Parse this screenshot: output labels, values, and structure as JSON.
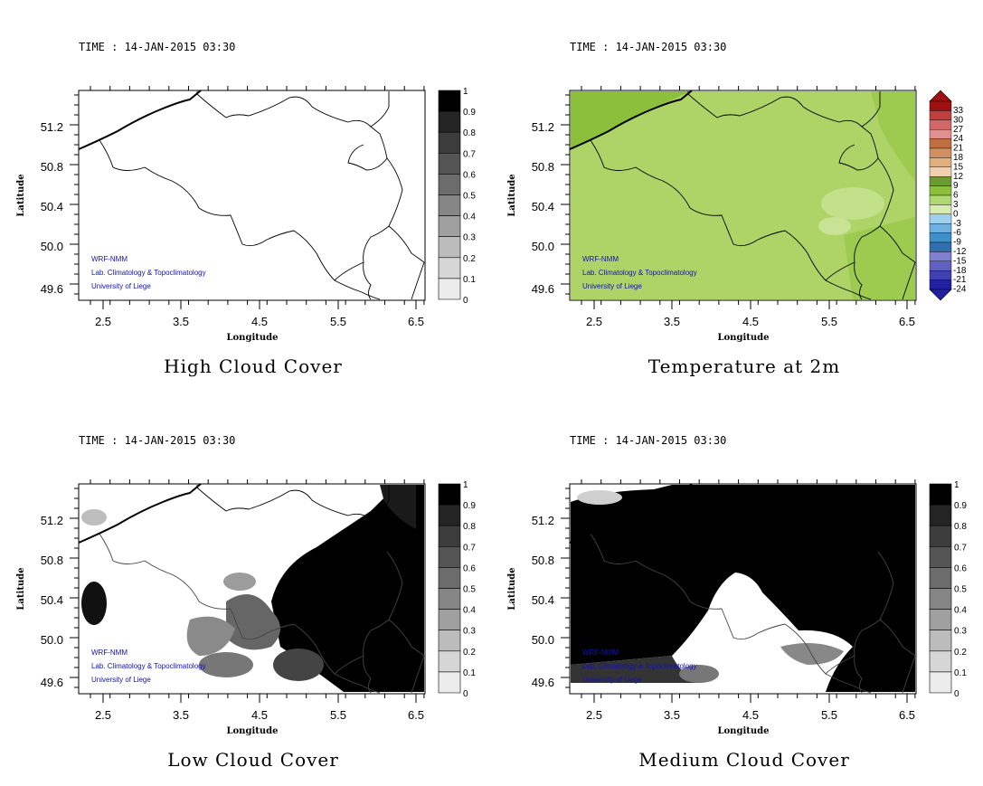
{
  "panels": [
    {
      "id": "high",
      "time": "TIME : 14-JAN-2015 03:30",
      "title": "High Cloud Cover",
      "xlabel": "Longitude",
      "ylabel": "Latitude",
      "x_ticks": [
        "2.5",
        "3.5",
        "4.5",
        "5.5",
        "6.5"
      ],
      "y_ticks": [
        "51.2",
        "50.8",
        "50.4",
        "50.0",
        "49.6"
      ],
      "colorbar_labels": [
        "1",
        "0.9",
        "0.8",
        "0.7",
        "0.6",
        "0.5",
        "0.4",
        "0.3",
        "0.2",
        "0.1",
        "0"
      ],
      "credits": [
        "WRF-NMM",
        "Lab. Climatology & Topoclimatology",
        "University of Liege"
      ]
    },
    {
      "id": "temp",
      "time": "TIME : 14-JAN-2015 03:30",
      "title": "Temperature at 2m",
      "xlabel": "Longitude",
      "ylabel": "Latitude",
      "x_ticks": [
        "2.5",
        "3.5",
        "4.5",
        "5.5",
        "6.5"
      ],
      "y_ticks": [
        "51.2",
        "50.8",
        "50.4",
        "50.0",
        "49.6"
      ],
      "colorbar_labels": [
        "33",
        "30",
        "27",
        "24",
        "21",
        "18",
        "15",
        "12",
        "9",
        "6",
        "3",
        "0",
        "-3",
        "-6",
        "-9",
        "-12",
        "-15",
        "-18",
        "-21",
        "-24"
      ],
      "credits": [
        "WRF-NMM",
        "Lab. Climatology & Topoclimatology",
        "University of Liege"
      ]
    },
    {
      "id": "low",
      "time": "TIME : 14-JAN-2015 03:30",
      "title": "Low Cloud Cover",
      "xlabel": "Longitude",
      "ylabel": "Latitude",
      "x_ticks": [
        "2.5",
        "3.5",
        "4.5",
        "5.5",
        "6.5"
      ],
      "y_ticks": [
        "51.2",
        "50.8",
        "50.4",
        "50.0",
        "49.6"
      ],
      "colorbar_labels": [
        "1",
        "0.9",
        "0.8",
        "0.7",
        "0.6",
        "0.5",
        "0.4",
        "0.3",
        "0.2",
        "0.1",
        "0"
      ],
      "credits": [
        "WRF-NMM",
        "Lab. Climatology & Topoclimatology",
        "University of Liege"
      ]
    },
    {
      "id": "medium",
      "time": "TIME : 14-JAN-2015 03:30",
      "title": "Medium Cloud Cover",
      "xlabel": "Longitude",
      "ylabel": "Latitude",
      "x_ticks": [
        "2.5",
        "3.5",
        "4.5",
        "5.5",
        "6.5"
      ],
      "y_ticks": [
        "51.2",
        "50.8",
        "50.4",
        "50.0",
        "49.6"
      ],
      "colorbar_labels": [
        "1",
        "0.9",
        "0.8",
        "0.7",
        "0.6",
        "0.5",
        "0.4",
        "0.3",
        "0.2",
        "0.1",
        "0"
      ],
      "credits": [
        "WRF-NMM",
        "Lab. Climatology & Topoclimatology",
        "University of Liege"
      ]
    }
  ],
  "colors": {
    "credit_text": "#1010c0",
    "temp_fill": "#aed468",
    "temp_fill_dark": "#8cbf3c",
    "cloud_full": "#000000"
  }
}
